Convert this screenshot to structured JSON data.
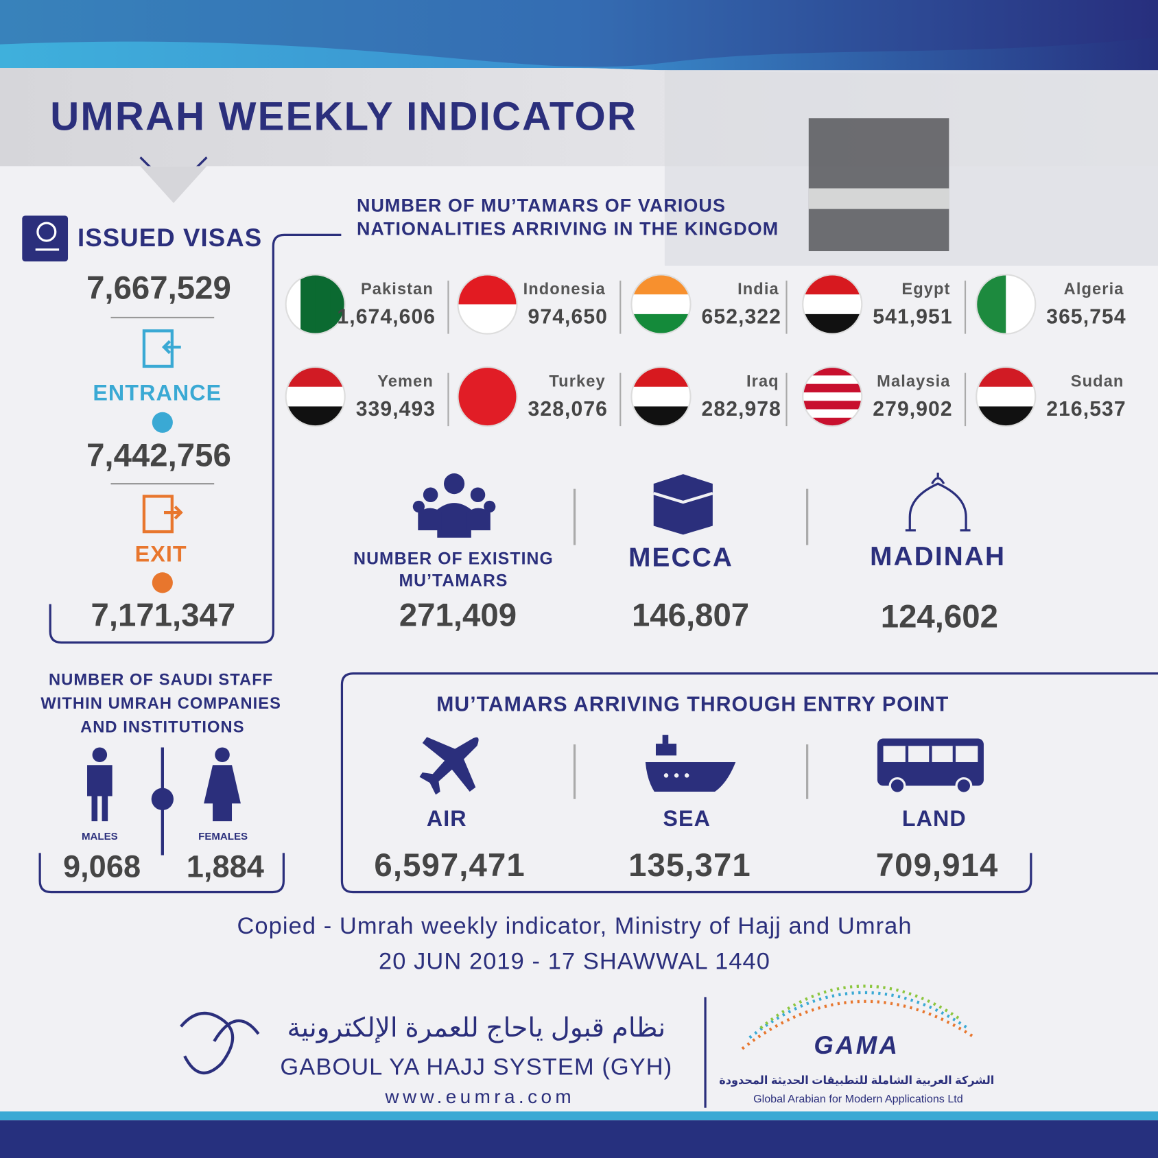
{
  "header": {
    "title": "UMRAH WEEKLY INDICATOR"
  },
  "visas": {
    "title": "ISSUED VISAS",
    "issued": "7,667,529",
    "entrance_label": "ENTRANCE",
    "entrance": "7,442,756",
    "exit_label": "EXIT",
    "exit": "7,171,347"
  },
  "nationalities": {
    "title_lines": [
      "NUMBER OF MU’TAMARS OF VARIOUS",
      "NATIONALITIES ARRIVING IN THE KINGDOM"
    ],
    "countries": [
      {
        "name": "Pakistan",
        "value": "1,674,606"
      },
      {
        "name": "Indonesia",
        "value": "974,650"
      },
      {
        "name": "India",
        "value": "652,322"
      },
      {
        "name": "Egypt",
        "value": "541,951"
      },
      {
        "name": "Algeria",
        "value": "365,754"
      },
      {
        "name": "Yemen",
        "value": "339,493"
      },
      {
        "name": "Turkey",
        "value": "328,076"
      },
      {
        "name": "Iraq",
        "value": "282,978"
      },
      {
        "name": "Malaysia",
        "value": "279,902"
      },
      {
        "name": "Sudan",
        "value": "216,537"
      }
    ]
  },
  "existing": {
    "label_lines": [
      "NUMBER OF EXISTING",
      "MU’TAMARS"
    ],
    "value": "271,409"
  },
  "mecca": {
    "label": "MECCA",
    "value": "146,807"
  },
  "madinah": {
    "label": "MADINAH",
    "value": "124,602"
  },
  "staff": {
    "title_lines": [
      "NUMBER OF SAUDI STAFF",
      "WITHIN UMRAH COMPANIES",
      "AND INSTITUTIONS"
    ],
    "males_label": "MALES",
    "males": "9,068",
    "females_label": "FEMALES",
    "females": "1,884"
  },
  "entry_points": {
    "title": "MU’TAMARS ARRIVING THROUGH ENTRY POINT",
    "points": [
      {
        "name": "AIR",
        "value": "6,597,471"
      },
      {
        "name": "SEA",
        "value": "135,371"
      },
      {
        "name": "LAND",
        "value": "709,914"
      }
    ]
  },
  "footer": {
    "source": "Copied - Umrah weekly indicator, Ministry of Hajj and Umrah",
    "date": "20 JUN 2019 - 17 SHAWWAL 1440",
    "gyh_arabic": "نظام قبول ياحاج للعمرة الإلكترونية",
    "gyh_name": "GABOUL YA HAJJ SYSTEM (GYH)",
    "url": "www.eumra.com",
    "gama": "GAMA",
    "gama_arabic": "الشركة العربية الشاملة للتطبيقات الحديثة المحدودة",
    "gama_name": "Global Arabian for Modern Applications Ltd"
  }
}
